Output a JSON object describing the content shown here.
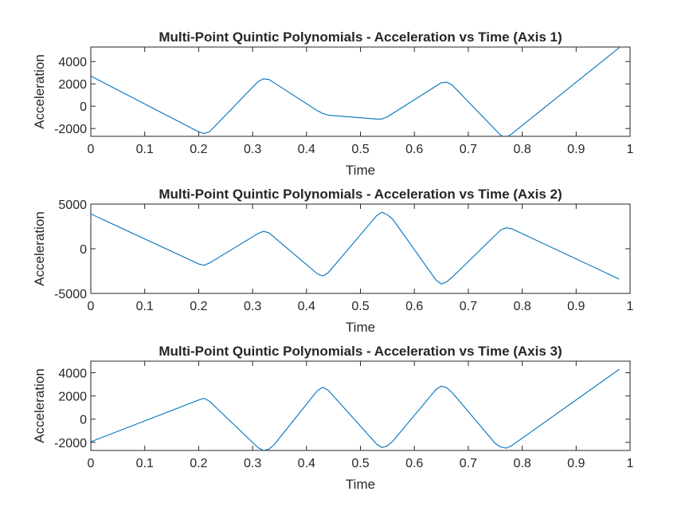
{
  "figure": {
    "background": "#ffffff",
    "line_color": "#0072bd",
    "axes_color": "#262626"
  },
  "chart_data": [
    {
      "type": "line",
      "title": "Multi-Point Quintic Polynomials - Acceleration vs Time (Axis 1)",
      "xlabel": "Time",
      "ylabel": "Acceleration",
      "xlim": [
        0,
        1
      ],
      "ylim": [
        -2700,
        5300
      ],
      "xticks": [
        0,
        0.1,
        0.2,
        0.3,
        0.4,
        0.5,
        0.6,
        0.7,
        0.8,
        0.9,
        1
      ],
      "xtick_labels": [
        "0",
        "0.1",
        "0.2",
        "0.3",
        "0.4",
        "0.5",
        "0.6",
        "0.7",
        "0.8",
        "0.9",
        "1"
      ],
      "yticks": [
        -2000,
        0,
        2000,
        4000
      ],
      "ytick_labels": [
        "-2000",
        "0",
        "2000",
        "4000"
      ],
      "grid": false,
      "series": [
        {
          "x": [
            0,
            0.2,
            0.21,
            0.22,
            0.31,
            0.32,
            0.33,
            0.34,
            0.42,
            0.43,
            0.44,
            0.53,
            0.54,
            0.55,
            0.64,
            0.65,
            0.66,
            0.67,
            0.76,
            0.77,
            0.78,
            0.98
          ],
          "values": [
            2700,
            -2300,
            -2450,
            -2300,
            2200,
            2450,
            2400,
            2100,
            -400,
            -650,
            -800,
            -1150,
            -1150,
            -950,
            1800,
            2100,
            2150,
            1900,
            -2600,
            -2800,
            -2500,
            5250
          ]
        }
      ]
    },
    {
      "type": "line",
      "title": "Multi-Point Quintic Polynomials - Acceleration vs Time (Axis 2)",
      "xlabel": "Time",
      "ylabel": "Acceleration",
      "xlim": [
        0,
        1
      ],
      "ylim": [
        -5000,
        5000
      ],
      "xticks": [
        0,
        0.1,
        0.2,
        0.3,
        0.4,
        0.5,
        0.6,
        0.7,
        0.8,
        0.9,
        1
      ],
      "xtick_labels": [
        "0",
        "0.1",
        "0.2",
        "0.3",
        "0.4",
        "0.5",
        "0.6",
        "0.7",
        "0.8",
        "0.9",
        "1"
      ],
      "yticks": [
        -5000,
        0,
        5000
      ],
      "ytick_labels": [
        "-5000",
        "0",
        "5000"
      ],
      "grid": false,
      "series": [
        {
          "x": [
            0,
            0.2,
            0.21,
            0.22,
            0.31,
            0.32,
            0.33,
            0.42,
            0.43,
            0.44,
            0.53,
            0.54,
            0.55,
            0.56,
            0.64,
            0.65,
            0.66,
            0.67,
            0.76,
            0.77,
            0.78,
            0.98
          ],
          "values": [
            3900,
            -1700,
            -1850,
            -1600,
            1700,
            1950,
            1800,
            -2800,
            -3050,
            -2700,
            3700,
            4100,
            3800,
            3300,
            -3500,
            -3950,
            -3700,
            -3200,
            2100,
            2350,
            2250,
            -3400
          ]
        }
      ]
    },
    {
      "type": "line",
      "title": "Multi-Point Quintic Polynomials - Acceleration vs Time (Axis 3)",
      "xlabel": "Time",
      "ylabel": "Acceleration",
      "xlim": [
        0,
        1
      ],
      "ylim": [
        -2700,
        5000
      ],
      "xticks": [
        0,
        0.1,
        0.2,
        0.3,
        0.4,
        0.5,
        0.6,
        0.7,
        0.8,
        0.9,
        1
      ],
      "xtick_labels": [
        "0",
        "0.1",
        "0.2",
        "0.3",
        "0.4",
        "0.5",
        "0.6",
        "0.7",
        "0.8",
        "0.9",
        "1"
      ],
      "yticks": [
        -2000,
        0,
        2000,
        4000
      ],
      "ytick_labels": [
        "-2000",
        "0",
        "2000",
        "4000"
      ],
      "grid": false,
      "series": [
        {
          "x": [
            0,
            0.2,
            0.21,
            0.22,
            0.31,
            0.32,
            0.33,
            0.34,
            0.42,
            0.43,
            0.44,
            0.53,
            0.54,
            0.55,
            0.56,
            0.64,
            0.65,
            0.66,
            0.67,
            0.75,
            0.76,
            0.77,
            0.78,
            0.98
          ],
          "values": [
            -1950,
            1650,
            1800,
            1550,
            -2450,
            -2700,
            -2600,
            -2200,
            2450,
            2750,
            2500,
            -2150,
            -2450,
            -2300,
            -1900,
            2550,
            2850,
            2700,
            2300,
            -2100,
            -2400,
            -2500,
            -2300,
            4300
          ]
        }
      ]
    }
  ]
}
